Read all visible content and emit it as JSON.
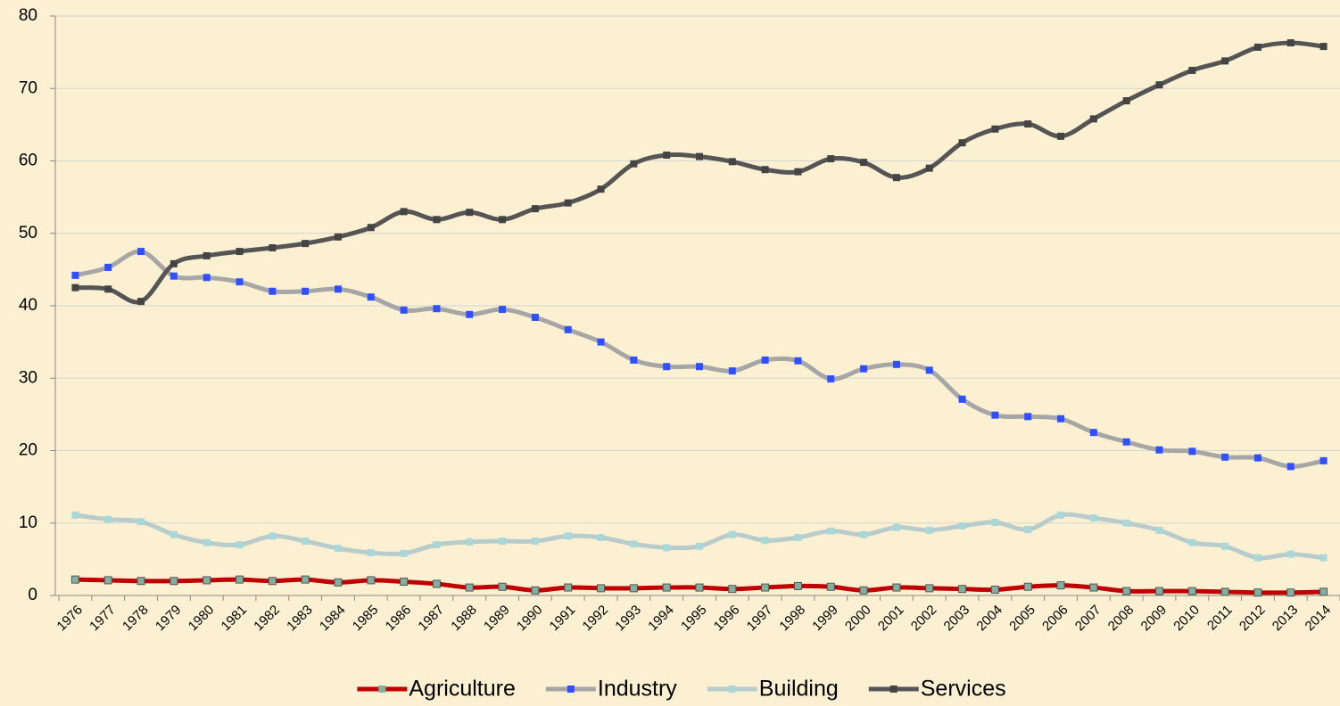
{
  "chart_data": {
    "type": "line",
    "categories": [
      "1976",
      "1977",
      "1978",
      "1979",
      "1980",
      "1981",
      "1982",
      "1983",
      "1984",
      "1985",
      "1986",
      "1987",
      "1988",
      "1989",
      "1990",
      "1991",
      "1992",
      "1993",
      "1994",
      "1995",
      "1996",
      "1997",
      "1998",
      "1999",
      "2000",
      "2001",
      "2002",
      "2003",
      "2004",
      "2005",
      "2006",
      "2007",
      "2008",
      "2009",
      "2010",
      "2011",
      "2012",
      "2013",
      "2014"
    ],
    "series": [
      {
        "name": "Agriculture",
        "color": "#c00000",
        "marker_color": "#7fb0a0",
        "values": [
          2.2,
          2.1,
          2.0,
          2.0,
          2.1,
          2.2,
          2.0,
          2.2,
          1.8,
          2.1,
          1.9,
          1.6,
          1.1,
          1.2,
          0.7,
          1.1,
          1.0,
          1.0,
          1.1,
          1.1,
          0.9,
          1.1,
          1.3,
          1.2,
          0.7,
          1.1,
          1.0,
          0.9,
          0.8,
          1.2,
          1.4,
          1.1,
          0.6,
          0.6,
          0.6,
          0.5,
          0.4,
          0.4,
          0.5
        ]
      },
      {
        "name": "Industry",
        "color": "#a6a6a6",
        "marker_color": "#3050ff",
        "values": [
          44.2,
          45.3,
          47.5,
          44.1,
          43.9,
          43.3,
          42.0,
          42.0,
          42.3,
          41.2,
          39.4,
          39.6,
          38.8,
          39.5,
          38.4,
          36.7,
          35.0,
          32.5,
          31.6,
          31.6,
          31.0,
          32.5,
          32.4,
          29.9,
          31.3,
          31.9,
          31.1,
          27.1,
          24.9,
          24.7,
          24.4,
          22.5,
          21.2,
          20.1,
          19.9,
          19.1,
          19.0,
          17.8,
          18.6
        ]
      },
      {
        "name": "Building",
        "color": "#b9cccc",
        "marker_color": "#a8d8d8",
        "values": [
          11.1,
          10.5,
          10.2,
          8.4,
          7.3,
          7.0,
          8.2,
          7.5,
          6.5,
          5.9,
          5.8,
          7.0,
          7.4,
          7.5,
          7.5,
          8.2,
          8.0,
          7.1,
          6.6,
          6.8,
          8.4,
          7.6,
          8.0,
          8.9,
          8.4,
          9.4,
          9.0,
          9.6,
          10.1,
          9.1,
          11.1,
          10.7,
          10.0,
          9.0,
          7.3,
          6.8,
          5.2,
          5.7,
          5.2
        ]
      },
      {
        "name": "Services",
        "color": "#555555",
        "marker_color": "#444444",
        "values": [
          42.5,
          42.3,
          40.6,
          45.8,
          46.9,
          47.5,
          48.0,
          48.6,
          49.5,
          50.8,
          53.0,
          51.9,
          52.9,
          51.9,
          53.4,
          54.2,
          56.1,
          59.6,
          60.8,
          60.6,
          59.9,
          58.8,
          58.5,
          60.3,
          59.8,
          57.7,
          59.0,
          62.5,
          64.4,
          65.1,
          63.4,
          65.8,
          68.3,
          70.5,
          72.5,
          73.8,
          75.7,
          76.3,
          75.8
        ]
      }
    ],
    "ylim": [
      0,
      80
    ],
    "yticks": [
      0,
      10,
      20,
      30,
      40,
      50,
      60,
      70,
      80
    ],
    "grid": true,
    "legend": "bottom"
  }
}
